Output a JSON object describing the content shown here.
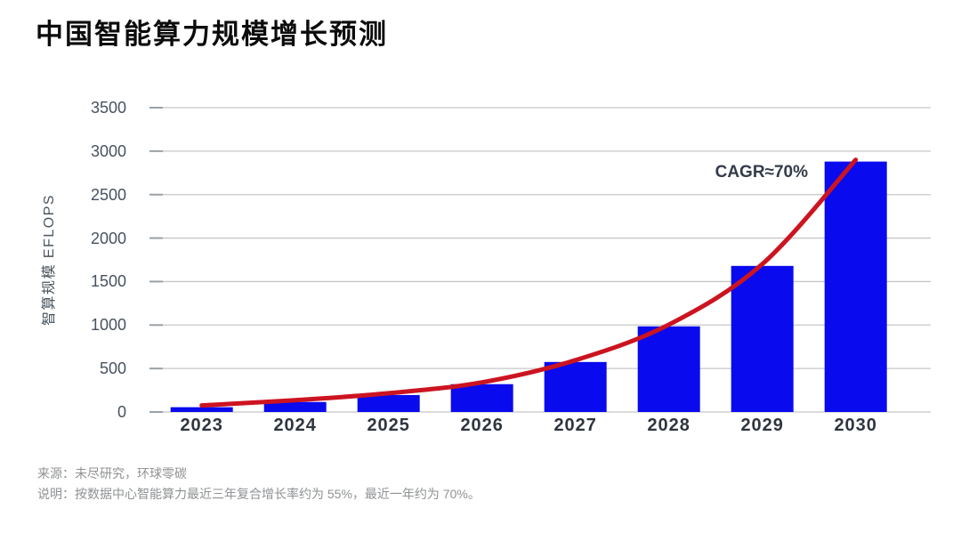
{
  "header": {
    "title": "中国智能算力规模增长预测"
  },
  "chart_data": {
    "type": "bar",
    "title": "中国智能算力规模增长预测",
    "categories": [
      "2023",
      "2024",
      "2025",
      "2026",
      "2027",
      "2028",
      "2029",
      "2030"
    ],
    "values": [
      55,
      115,
      195,
      320,
      575,
      985,
      1680,
      2880
    ],
    "xlabel": "",
    "ylabel": "智算规模 EFLOPS",
    "ylim": [
      0,
      3500
    ],
    "ytick_step": 500,
    "grid": true,
    "legend": false,
    "bar_color": "#0a0aee",
    "grid_color": "#c7c7c7",
    "tick_mark_color": "#9aa1a8",
    "annotation": {
      "text": "CAGR≈70%",
      "color": "#333b49"
    },
    "trend_line": {
      "type": "smooth-exponential-through-bar-tops",
      "color": "#cc1420",
      "width": 5
    }
  },
  "footer": {
    "source": "来源：未尽研究，环球零碳",
    "note": "说明：按数据中心智能算力最近三年复合增长率约为 55%，最近一年约为 70%。"
  }
}
